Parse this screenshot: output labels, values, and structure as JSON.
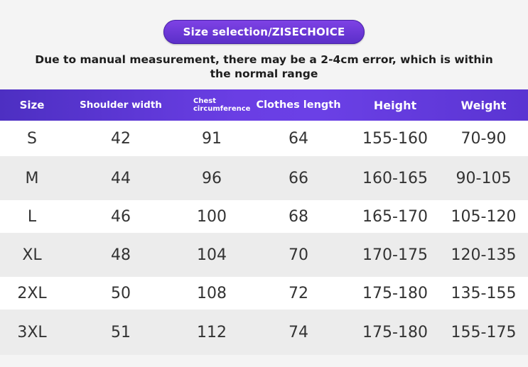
{
  "title": "Size selection/ZISECHOICE",
  "note": "Due to manual measurement, there may be a 2-4cm error, which is within the normal range",
  "columns": [
    "Size",
    "Shoulder width",
    "Chest circumference",
    "Clothes length",
    "Height",
    "Weight"
  ],
  "rows": [
    [
      "S",
      "42",
      "91",
      "64",
      "155-160",
      "70-90"
    ],
    [
      "M",
      "44",
      "96",
      "66",
      "160-165",
      "90-105"
    ],
    [
      "L",
      "46",
      "100",
      "68",
      "165-170",
      "105-120"
    ],
    [
      "XL",
      "48",
      "104",
      "70",
      "170-175",
      "120-135"
    ],
    [
      "2XL",
      "50",
      "108",
      "72",
      "175-180",
      "135-155"
    ],
    [
      "3XL",
      "51",
      "112",
      "74",
      "175-180",
      "155-175"
    ]
  ],
  "colors": {
    "accent": "#6a3ee4",
    "header_text": "#ffffff",
    "row_alt": "#ececec"
  }
}
